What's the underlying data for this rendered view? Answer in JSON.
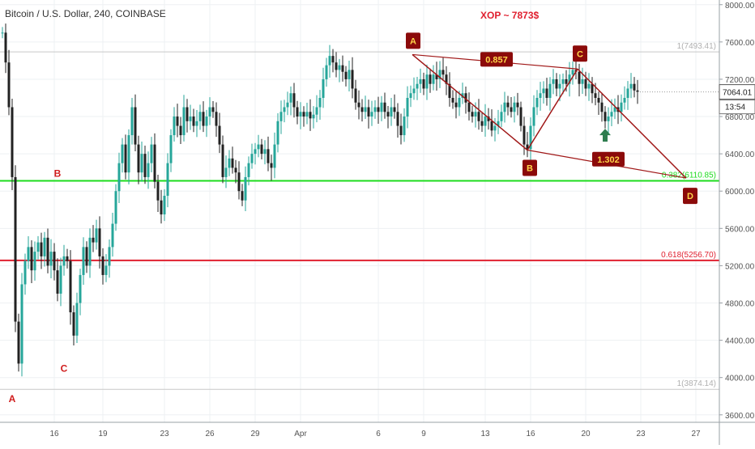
{
  "header": {
    "symbol_title": "Bitcoin / U.S. Dollar, 240, COINBASE",
    "annotation": "XOP ~ 7873$"
  },
  "colors": {
    "up": "#26a69a",
    "down": "#222222",
    "grid": "#eef0f3",
    "pattern": "#a01818",
    "fib_green": "#1ddc1d",
    "fib_red": "#e0202f",
    "fib_grey": "#c8c8c8",
    "label_bg": "#8b0a0a",
    "label_text": "#ffd54a",
    "arrow": "#2e7d4f",
    "red_letter": "#d01c1c"
  },
  "chart_data": {
    "type": "candlestick",
    "title": "Bitcoin / U.S. Dollar, 240, COINBASE",
    "ylim": [
      3520,
      8050
    ],
    "y_ticks": [
      "8000.00",
      "7600.00",
      "7200.00",
      "6800.00",
      "6400.00",
      "6000.00",
      "5600.00",
      "5200.00",
      "4800.00",
      "4400.00",
      "4000.00",
      "3600.00"
    ],
    "x_ticks": [
      "16",
      "19",
      "23",
      "26",
      "29",
      "Apr",
      "6",
      "9",
      "13",
      "16",
      "20",
      "23",
      "27"
    ],
    "last_price": "7064.01",
    "countdown": "13:54",
    "fib_levels": [
      {
        "label": "1(7493.41)",
        "value": 7493.41
      },
      {
        "label": "0.382(6110.85)",
        "value": 6110.85
      },
      {
        "label": "0.618(5256.70)",
        "value": 5256.7
      },
      {
        "label": "1(3874.14)",
        "value": 3874.14
      }
    ],
    "harmonic_points": [
      {
        "label": "A",
        "bar": 126.5,
        "value": 7465
      },
      {
        "label": "B",
        "bar": 162,
        "value": 6440
      },
      {
        "label": "C",
        "bar": 177.5,
        "value": 7310
      },
      {
        "label": "D",
        "bar": 211,
        "value": 6140
      }
    ],
    "ratios": [
      "0.857",
      "1.302"
    ],
    "left_labels": [
      "A",
      "B",
      "C"
    ],
    "series_close": [
      [
        0,
        7700
      ],
      [
        1,
        7380
      ],
      [
        2,
        6900
      ],
      [
        3,
        6150
      ],
      [
        4,
        4600
      ],
      [
        5,
        4150
      ],
      [
        6,
        5000
      ],
      [
        7,
        5250
      ],
      [
        8,
        5400
      ],
      [
        9,
        5150
      ],
      [
        10,
        5350
      ],
      [
        11,
        5450
      ],
      [
        12,
        5300
      ],
      [
        13,
        5500
      ],
      [
        14,
        5200
      ],
      [
        15,
        5350
      ],
      [
        16,
        5150
      ],
      [
        17,
        4900
      ],
      [
        18,
        5200
      ],
      [
        19,
        5300
      ],
      [
        20,
        5250
      ],
      [
        21,
        4700
      ],
      [
        22,
        4450
      ],
      [
        23,
        4800
      ],
      [
        24,
        5100
      ],
      [
        25,
        5400
      ],
      [
        26,
        5200
      ],
      [
        27,
        5500
      ],
      [
        28,
        5450
      ],
      [
        29,
        5600
      ],
      [
        30,
        5300
      ],
      [
        31,
        5100
      ],
      [
        32,
        5200
      ],
      [
        33,
        5400
      ],
      [
        34,
        5650
      ],
      [
        35,
        6000
      ],
      [
        36,
        6300
      ],
      [
        37,
        6500
      ],
      [
        38,
        6200
      ],
      [
        39,
        6600
      ],
      [
        40,
        6900
      ],
      [
        41,
        6500
      ],
      [
        42,
        6200
      ],
      [
        43,
        6400
      ],
      [
        44,
        6150
      ],
      [
        45,
        6300
      ],
      [
        46,
        6500
      ],
      [
        47,
        6100
      ],
      [
        48,
        5900
      ],
      [
        49,
        5750
      ],
      [
        50,
        5950
      ],
      [
        51,
        6300
      ],
      [
        52,
        6600
      ],
      [
        53,
        6800
      ],
      [
        54,
        6700
      ],
      [
        55,
        6600
      ],
      [
        56,
        6900
      ],
      [
        57,
        6750
      ],
      [
        58,
        6800
      ],
      [
        59,
        6700
      ],
      [
        60,
        6750
      ],
      [
        61,
        6850
      ],
      [
        62,
        6700
      ],
      [
        63,
        6800
      ],
      [
        64,
        6900
      ],
      [
        65,
        6850
      ],
      [
        66,
        6700
      ],
      [
        67,
        6500
      ],
      [
        68,
        6150
      ],
      [
        69,
        6250
      ],
      [
        70,
        6350
      ],
      [
        71,
        6250
      ],
      [
        72,
        6200
      ],
      [
        73,
        6000
      ],
      [
        74,
        5900
      ],
      [
        75,
        6150
      ],
      [
        76,
        6300
      ],
      [
        77,
        6400
      ],
      [
        78,
        6450
      ],
      [
        79,
        6500
      ],
      [
        80,
        6400
      ],
      [
        81,
        6450
      ],
      [
        82,
        6300
      ],
      [
        83,
        6250
      ],
      [
        84,
        6500
      ],
      [
        85,
        6750
      ],
      [
        86,
        6850
      ],
      [
        87,
        6900
      ],
      [
        88,
        6950
      ],
      [
        89,
        7050
      ],
      [
        90,
        6900
      ],
      [
        91,
        6800
      ],
      [
        92,
        6850
      ],
      [
        93,
        6800
      ],
      [
        94,
        6850
      ],
      [
        95,
        6780
      ],
      [
        96,
        6820
      ],
      [
        97,
        6900
      ],
      [
        98,
        7000
      ],
      [
        99,
        7200
      ],
      [
        100,
        7350
      ],
      [
        101,
        7450
      ],
      [
        102,
        7380
      ],
      [
        103,
        7300
      ],
      [
        104,
        7350
      ],
      [
        105,
        7280
      ],
      [
        106,
        7200
      ],
      [
        107,
        7300
      ],
      [
        108,
        7100
      ],
      [
        109,
        6950
      ],
      [
        110,
        6900
      ],
      [
        111,
        6850
      ],
      [
        112,
        6900
      ],
      [
        113,
        6800
      ],
      [
        114,
        6850
      ],
      [
        115,
        6900
      ],
      [
        116,
        6850
      ],
      [
        117,
        6950
      ],
      [
        118,
        6850
      ],
      [
        119,
        6800
      ],
      [
        120,
        6900
      ],
      [
        121,
        6850
      ],
      [
        122,
        6700
      ],
      [
        123,
        6600
      ],
      [
        124,
        6800
      ],
      [
        125,
        7000
      ],
      [
        126,
        7050
      ],
      [
        127,
        7100
      ],
      [
        128,
        7150
      ],
      [
        129,
        7200
      ],
      [
        130,
        7100
      ],
      [
        131,
        7250
      ],
      [
        132,
        7150
      ],
      [
        133,
        7250
      ],
      [
        134,
        7200
      ],
      [
        135,
        7300
      ],
      [
        136,
        7250
      ],
      [
        137,
        7150
      ],
      [
        138,
        7000
      ],
      [
        139,
        6950
      ],
      [
        140,
        6900
      ],
      [
        141,
        7000
      ],
      [
        142,
        7050
      ],
      [
        143,
        6950
      ],
      [
        144,
        6850
      ],
      [
        145,
        6800
      ],
      [
        146,
        6850
      ],
      [
        147,
        6750
      ],
      [
        148,
        6700
      ],
      [
        149,
        6800
      ],
      [
        150,
        6750
      ],
      [
        151,
        6650
      ],
      [
        152,
        6700
      ],
      [
        153,
        6750
      ],
      [
        154,
        6850
      ],
      [
        155,
        6950
      ],
      [
        156,
        6900
      ],
      [
        157,
        6850
      ],
      [
        158,
        6950
      ],
      [
        159,
        6900
      ],
      [
        160,
        6700
      ],
      [
        161,
        6500
      ],
      [
        162,
        6450
      ],
      [
        163,
        6700
      ],
      [
        164,
        6900
      ],
      [
        165,
        7000
      ],
      [
        166,
        7050
      ],
      [
        167,
        7100
      ],
      [
        168,
        7000
      ],
      [
        169,
        7150
      ],
      [
        170,
        7200
      ],
      [
        171,
        7100
      ],
      [
        172,
        7150
      ],
      [
        173,
        7200
      ],
      [
        174,
        7150
      ],
      [
        175,
        7250
      ],
      [
        176,
        7300
      ],
      [
        177,
        7280
      ],
      [
        178,
        7150
      ],
      [
        179,
        7200
      ],
      [
        180,
        7100
      ],
      [
        181,
        7150
      ],
      [
        182,
        7050
      ],
      [
        183,
        7000
      ],
      [
        184,
        6950
      ],
      [
        185,
        6850
      ],
      [
        186,
        6750
      ],
      [
        187,
        6800
      ],
      [
        188,
        6850
      ],
      [
        189,
        6900
      ],
      [
        190,
        6850
      ],
      [
        191,
        6950
      ],
      [
        192,
        7000
      ],
      [
        193,
        7100
      ],
      [
        194,
        7150
      ],
      [
        195,
        7080
      ],
      [
        196,
        7064
      ]
    ]
  }
}
